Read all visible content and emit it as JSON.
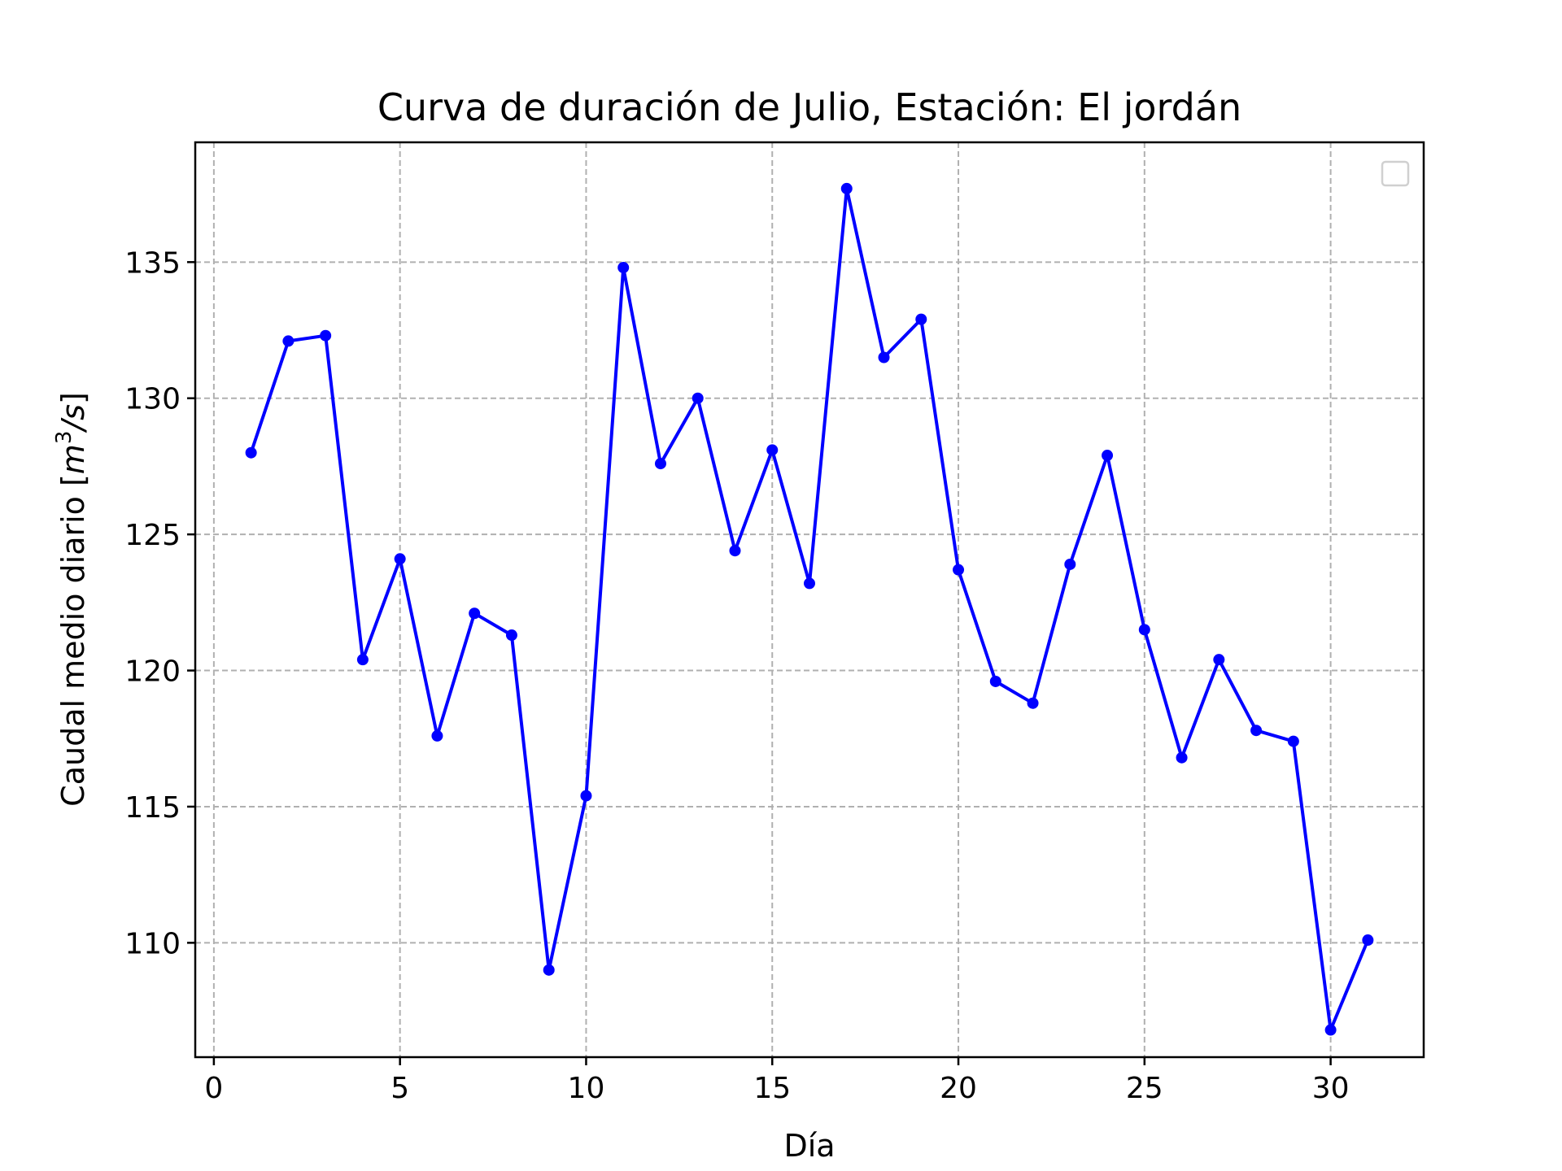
{
  "chart_data": {
    "type": "line",
    "title": "Curva de duración de Julio, Estación: El jordán",
    "xlabel": "Día",
    "ylabel": "Caudal medio diario [m³/s]",
    "ylabel_base": "Caudal medio diario [",
    "ylabel_unit_m": "m",
    "ylabel_unit_exp": "3",
    "ylabel_unit_rest": "/s",
    "ylabel_close": "]",
    "xlim": [
      -0.5,
      32.5
    ],
    "ylim": [
      105.8,
      139.4
    ],
    "xticks": [
      0,
      5,
      10,
      15,
      20,
      25,
      30
    ],
    "yticks": [
      110,
      115,
      120,
      125,
      130,
      135
    ],
    "grid": true,
    "legend": "top-right",
    "color": "#0000ff",
    "series": [
      {
        "x": [
          1,
          2,
          3,
          4,
          5,
          6,
          7,
          8,
          9,
          10,
          11,
          12,
          13,
          14,
          15,
          16,
          17,
          18,
          19,
          20,
          21,
          22,
          23,
          24,
          25,
          26,
          27,
          28,
          29,
          30,
          31
        ],
        "values": [
          128.0,
          132.1,
          132.3,
          120.4,
          124.1,
          117.6,
          122.1,
          121.3,
          109.0,
          115.4,
          134.8,
          127.6,
          130.0,
          124.4,
          128.1,
          123.2,
          137.7,
          131.5,
          132.9,
          123.7,
          119.6,
          118.8,
          123.9,
          127.9,
          121.5,
          116.8,
          120.4,
          117.8,
          117.4,
          106.8,
          110.1
        ]
      }
    ]
  }
}
